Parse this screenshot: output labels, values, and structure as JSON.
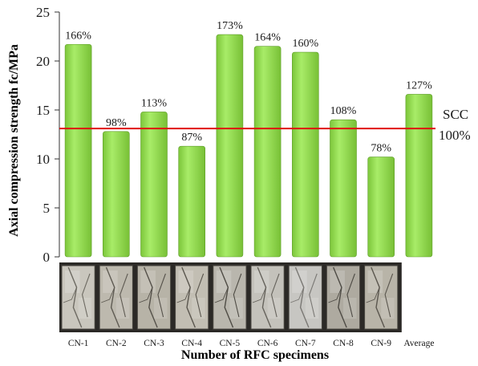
{
  "chart_data": {
    "type": "bar",
    "categories": [
      "CN-1",
      "CN-2",
      "CN-3",
      "CN-4",
      "CN-5",
      "CN-6",
      "CN-7",
      "CN-8",
      "CN-9",
      "Average"
    ],
    "values": [
      21.7,
      12.8,
      14.8,
      11.3,
      22.7,
      21.5,
      20.9,
      14.0,
      10.2,
      16.6
    ],
    "data_labels": [
      "166%",
      "98%",
      "113%",
      "87%",
      "173%",
      "164%",
      "160%",
      "108%",
      "78%",
      "127%"
    ],
    "xlabel": "Number of  RFC specimens",
    "ylabel": "Axial compression strength   fc/MPa",
    "ylim": [
      0,
      25
    ],
    "yticks": [
      0,
      5,
      10,
      15,
      20,
      25
    ],
    "reference_line": {
      "value": 13.1,
      "label_line1": "SCC",
      "label_line2": "100%",
      "color": "#e01010"
    },
    "bar_color": "#8fd84a",
    "grid": false,
    "legend": "none"
  },
  "specimen_photos": [
    {
      "category": "CN-1",
      "base": "#c9c6bd",
      "crack": "#6d6a62"
    },
    {
      "category": "CN-2",
      "base": "#bdb9ae",
      "crack": "#5f5b53"
    },
    {
      "category": "CN-3",
      "base": "#b7b3a7",
      "crack": "#55514a"
    },
    {
      "category": "CN-4",
      "base": "#c2beb3",
      "crack": "#5a564e"
    },
    {
      "category": "CN-5",
      "base": "#b9b6ad",
      "crack": "#4f4c45"
    },
    {
      "category": "CN-6",
      "base": "#c4c2bb",
      "crack": "#66635c"
    },
    {
      "category": "CN-7",
      "base": "#c7c6c2",
      "crack": "#7a7874"
    },
    {
      "category": "CN-8",
      "base": "#aeaaa0",
      "crack": "#4e4b45"
    },
    {
      "category": "CN-9",
      "base": "#b8b4a8",
      "crack": "#5a564e"
    }
  ]
}
